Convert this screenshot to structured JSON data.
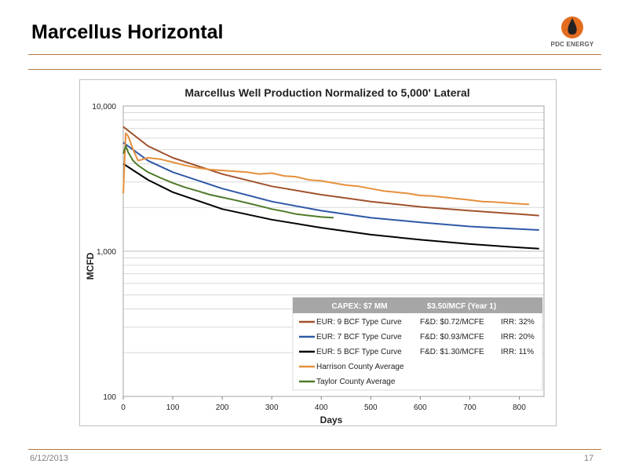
{
  "slide": {
    "title": "Marcellus Horizontal",
    "logo_text": "PDC ENERGY",
    "date": "6/12/2013",
    "page": "17"
  },
  "colors": {
    "rule": "#b7793f",
    "eur9": "#a0522d",
    "eur7": "#2e58a6",
    "eur5": "#000000",
    "harrison": "#e6903c",
    "taylor": "#4e7a2a",
    "legend_header_bg": "#a6a6a6"
  },
  "chart_data": {
    "type": "line",
    "title": "Marcellus Well Production Normalized to 5,000' Lateral",
    "xlabel": "Days",
    "ylabel": "MCFD",
    "xlim": [
      0,
      850
    ],
    "ylim": [
      100,
      10000
    ],
    "yscale": "log",
    "grid": true,
    "x_ticks": [
      "0",
      "100",
      "200",
      "300",
      "400",
      "500",
      "600",
      "700",
      "800"
    ],
    "y_ticks": [
      "100",
      "1,000",
      "10,000"
    ],
    "legend": {
      "placement": "bottom-right",
      "header": [
        "CAPEX: $7 MM",
        "$3.50/MCF (Year 1)"
      ],
      "rows": [
        {
          "name": "EUR: 9 BCF Type Curve",
          "fd": "F&D: $0.72/MCFE",
          "irr": "IRR: 32%"
        },
        {
          "name": "EUR: 7 BCF Type Curve",
          "fd": "F&D: $0.93/MCFE",
          "irr": "IRR: 20%"
        },
        {
          "name": "EUR: 5 BCF Type Curve",
          "fd": "F&D: $1.30/MCFE",
          "irr": "IRR: 11%"
        },
        {
          "name": "Harrison County Average",
          "fd": "",
          "irr": ""
        },
        {
          "name": "Taylor County Average",
          "fd": "",
          "irr": ""
        }
      ]
    },
    "series": [
      {
        "name": "EUR: 9 BCF Type Curve",
        "x": [
          0,
          50,
          100,
          200,
          300,
          400,
          500,
          600,
          700,
          800,
          840
        ],
        "y": [
          7200,
          5300,
          4400,
          3400,
          2800,
          2450,
          2200,
          2020,
          1900,
          1800,
          1760
        ]
      },
      {
        "name": "EUR: 7 BCF Type Curve",
        "x": [
          0,
          50,
          100,
          200,
          300,
          400,
          500,
          600,
          700,
          800,
          840
        ],
        "y": [
          5600,
          4200,
          3500,
          2700,
          2200,
          1900,
          1700,
          1580,
          1480,
          1420,
          1400
        ]
      },
      {
        "name": "EUR: 5 BCF Type Curve",
        "x": [
          0,
          50,
          100,
          200,
          300,
          400,
          500,
          600,
          700,
          800,
          840
        ],
        "y": [
          4000,
          3100,
          2550,
          1950,
          1650,
          1450,
          1300,
          1200,
          1120,
          1060,
          1040
        ]
      },
      {
        "name": "Harrison County Average",
        "x": [
          0,
          5,
          10,
          20,
          30,
          50,
          75,
          100,
          125,
          150,
          175,
          200,
          225,
          250,
          275,
          300,
          325,
          350,
          375,
          400,
          425,
          450,
          475,
          500,
          525,
          550,
          575,
          600,
          625,
          650,
          675,
          700,
          725,
          750,
          775,
          800,
          820
        ],
        "y": [
          2500,
          6500,
          6200,
          5000,
          4200,
          4400,
          4300,
          4100,
          3900,
          3750,
          3650,
          3600,
          3550,
          3500,
          3400,
          3450,
          3300,
          3250,
          3100,
          3050,
          2950,
          2850,
          2800,
          2700,
          2600,
          2550,
          2500,
          2420,
          2400,
          2350,
          2300,
          2250,
          2200,
          2180,
          2150,
          2120,
          2100
        ]
      },
      {
        "name": "Taylor County Average",
        "x": [
          0,
          5,
          10,
          20,
          30,
          50,
          75,
          100,
          125,
          150,
          175,
          200,
          225,
          250,
          275,
          300,
          325,
          350,
          375,
          400,
          425
        ],
        "y": [
          4700,
          5300,
          4800,
          4200,
          3900,
          3500,
          3200,
          2950,
          2750,
          2600,
          2450,
          2350,
          2250,
          2150,
          2050,
          1950,
          1880,
          1800,
          1760,
          1720,
          1700
        ]
      }
    ]
  }
}
